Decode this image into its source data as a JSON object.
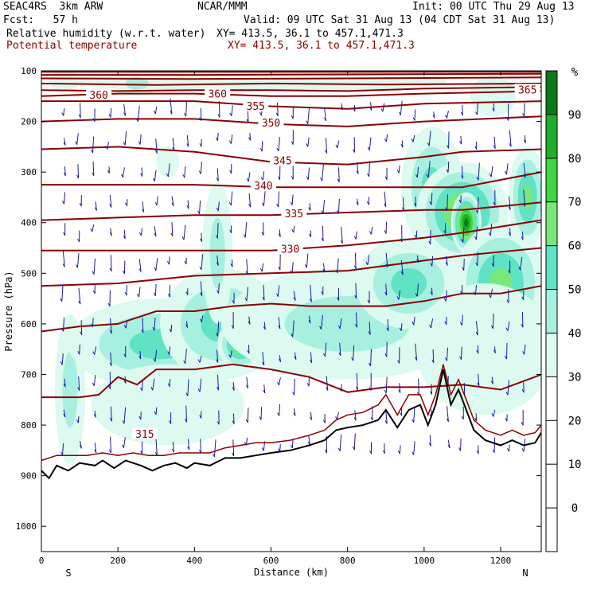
{
  "header": {
    "run": "SEAC4RS  3km ARW",
    "org": "NCAR/MMM",
    "init": "Init: 00 UTC Thu 29 Aug 13",
    "fcst": "Fcst:   57 h",
    "valid": "Valid: 09 UTC Sat 31 Aug 13 (04 CDT Sat 31 Aug 13)",
    "field1": "Relative humidity (w.r.t. water)",
    "field1_xy": "XY= 413.5, 36.1 to 457.1,471.3",
    "field2": "Potential temperature",
    "field2_xy": "XY= 413.5, 36.1 to 457.1,471.3",
    "theta_color": "#8b0000"
  },
  "chart_data": {
    "type": "heatmap",
    "xlabel": "Distance (km)",
    "ylabel": "Pressure (hPa)",
    "xlim": [
      0,
      1306
    ],
    "ylim": [
      1050,
      100
    ],
    "x_ticks": [
      0,
      200,
      400,
      600,
      800,
      1000,
      1200
    ],
    "y_ticks": [
      100,
      200,
      300,
      400,
      500,
      600,
      700,
      800,
      900,
      1000
    ],
    "end_labels": {
      "left": "S",
      "right": "N"
    },
    "colorbar": {
      "unit": "%",
      "ticks": [
        0,
        10,
        20,
        30,
        40,
        50,
        60,
        70,
        80,
        90
      ],
      "levels": [
        {
          "min": 30,
          "max": 40,
          "color": "#dcfaef"
        },
        {
          "min": 40,
          "max": 50,
          "color": "#a7f0e0"
        },
        {
          "min": 50,
          "max": 60,
          "color": "#5fe3c4"
        },
        {
          "min": 60,
          "max": 70,
          "color": "#78e87a"
        },
        {
          "min": 70,
          "max": 80,
          "color": "#3fd641"
        },
        {
          "min": 80,
          "max": 90,
          "color": "#20ad2b"
        },
        {
          "min": 90,
          "max": 100,
          "color": "#0c7a19"
        }
      ]
    },
    "humidity_blobs": [
      {
        "x": 75,
        "p": 730,
        "rx": 40,
        "rp": 150,
        "rh": 50
      },
      {
        "x": 150,
        "p": 640,
        "rx": 70,
        "rp": 60,
        "rh": 48
      },
      {
        "x": 310,
        "p": 640,
        "rx": 240,
        "rp": 90,
        "rh": 56
      },
      {
        "x": 470,
        "p": 600,
        "rx": 160,
        "rp": 110,
        "rh": 58
      },
      {
        "x": 520,
        "p": 640,
        "rx": 60,
        "rp": 50,
        "rh": 72
      },
      {
        "x": 460,
        "p": 460,
        "rx": 40,
        "rp": 140,
        "rh": 45
      },
      {
        "x": 330,
        "p": 760,
        "rx": 200,
        "rp": 80,
        "rh": 38
      },
      {
        "x": 800,
        "p": 600,
        "rx": 330,
        "rp": 110,
        "rh": 42
      },
      {
        "x": 960,
        "p": 520,
        "rx": 140,
        "rp": 90,
        "rh": 55
      },
      {
        "x": 1020,
        "p": 330,
        "rx": 80,
        "rp": 120,
        "rh": 58
      },
      {
        "x": 1100,
        "p": 380,
        "rx": 120,
        "rp": 100,
        "rh": 78
      },
      {
        "x": 1110,
        "p": 400,
        "rx": 40,
        "rp": 60,
        "rh": 92
      },
      {
        "x": 1200,
        "p": 520,
        "rx": 120,
        "rp": 120,
        "rh": 68
      },
      {
        "x": 1270,
        "p": 350,
        "rx": 50,
        "rp": 100,
        "rh": 62
      },
      {
        "x": 1160,
        "p": 650,
        "rx": 180,
        "rp": 130,
        "rh": 40
      },
      {
        "x": 560,
        "p": 120,
        "rx": 500,
        "rp": 22,
        "rh": 36
      },
      {
        "x": 250,
        "p": 125,
        "rx": 60,
        "rp": 25,
        "rh": 42
      },
      {
        "x": 60,
        "p": 120,
        "rx": 40,
        "rp": 20,
        "rh": 38
      },
      {
        "x": 330,
        "p": 280,
        "rx": 30,
        "rp": 30,
        "rh": 34
      },
      {
        "x": 1180,
        "p": 150,
        "rx": 60,
        "rp": 40,
        "rh": 34
      }
    ],
    "theta_isentropes": [
      {
        "label": "315",
        "label_x": 270,
        "label_p": 820,
        "points": [
          [
            0,
            745
          ],
          [
            100,
            745
          ],
          [
            150,
            740
          ],
          [
            200,
            705
          ],
          [
            250,
            720
          ],
          [
            300,
            690
          ],
          [
            400,
            690
          ],
          [
            500,
            680
          ],
          [
            600,
            690
          ],
          [
            700,
            705
          ],
          [
            800,
            735
          ],
          [
            900,
            725
          ],
          [
            1000,
            725
          ],
          [
            1100,
            720
          ],
          [
            1200,
            730
          ],
          [
            1306,
            700
          ]
        ]
      },
      {
        "label": "",
        "points": [
          [
            0,
            615
          ],
          [
            100,
            605
          ],
          [
            200,
            600
          ],
          [
            300,
            575
          ],
          [
            400,
            575
          ],
          [
            500,
            565
          ],
          [
            600,
            560
          ],
          [
            700,
            565
          ],
          [
            800,
            565
          ],
          [
            900,
            565
          ],
          [
            1000,
            555
          ],
          [
            1100,
            540
          ],
          [
            1200,
            540
          ],
          [
            1306,
            525
          ]
        ]
      },
      {
        "label": "",
        "points": [
          [
            0,
            525
          ],
          [
            200,
            520
          ],
          [
            400,
            505
          ],
          [
            600,
            500
          ],
          [
            800,
            495
          ],
          [
            1000,
            475
          ],
          [
            1100,
            465
          ],
          [
            1306,
            450
          ]
        ]
      },
      {
        "label": "330",
        "label_x": 650,
        "label_p": 455,
        "points": [
          [
            0,
            455
          ],
          [
            200,
            455
          ],
          [
            400,
            455
          ],
          [
            600,
            455
          ],
          [
            800,
            445
          ],
          [
            1000,
            430
          ],
          [
            1100,
            420
          ],
          [
            1306,
            395
          ]
        ]
      },
      {
        "label": "335",
        "label_x": 660,
        "label_p": 385,
        "points": [
          [
            0,
            395
          ],
          [
            200,
            390
          ],
          [
            400,
            385
          ],
          [
            600,
            385
          ],
          [
            800,
            380
          ],
          [
            1000,
            375
          ],
          [
            1100,
            375
          ],
          [
            1306,
            360
          ]
        ]
      },
      {
        "label": "340",
        "label_x": 580,
        "label_p": 330,
        "points": [
          [
            0,
            325
          ],
          [
            200,
            325
          ],
          [
            400,
            325
          ],
          [
            600,
            330
          ],
          [
            800,
            330
          ],
          [
            1000,
            330
          ],
          [
            1100,
            330
          ],
          [
            1306,
            300
          ]
        ]
      },
      {
        "label": "345",
        "label_x": 630,
        "label_p": 280,
        "points": [
          [
            0,
            255
          ],
          [
            200,
            250
          ],
          [
            400,
            260
          ],
          [
            600,
            280
          ],
          [
            800,
            285
          ],
          [
            1000,
            270
          ],
          [
            1100,
            260
          ],
          [
            1306,
            255
          ]
        ]
      },
      {
        "label": "350",
        "label_x": 600,
        "label_p": 205,
        "points": [
          [
            0,
            200
          ],
          [
            200,
            195
          ],
          [
            400,
            195
          ],
          [
            600,
            205
          ],
          [
            800,
            210
          ],
          [
            1000,
            200
          ],
          [
            1306,
            190
          ]
        ]
      },
      {
        "label": "355",
        "label_x": 560,
        "label_p": 172,
        "points": [
          [
            0,
            160
          ],
          [
            200,
            160
          ],
          [
            400,
            160
          ],
          [
            600,
            170
          ],
          [
            800,
            175
          ],
          [
            1000,
            165
          ],
          [
            1306,
            160
          ]
        ]
      },
      {
        "label": "360",
        "label_x": 460,
        "label_p": 148,
        "points": [
          [
            0,
            150
          ],
          [
            200,
            145
          ],
          [
            400,
            145
          ],
          [
            600,
            150
          ],
          [
            800,
            150
          ],
          [
            1000,
            145
          ],
          [
            1306,
            140
          ]
        ]
      },
      {
        "label": "360",
        "label_x": 150,
        "label_p": 150,
        "points": [
          [
            0,
            138
          ],
          [
            200,
            140
          ],
          [
            400,
            138
          ],
          [
            600,
            138
          ],
          [
            800,
            140
          ],
          [
            1000,
            135
          ],
          [
            1306,
            132
          ]
        ]
      },
      {
        "label": "365",
        "label_x": 1270,
        "label_p": 140,
        "points": [
          [
            0,
            125
          ],
          [
            300,
            128
          ],
          [
            600,
            125
          ],
          [
            900,
            127
          ],
          [
            1306,
            125
          ]
        ]
      },
      {
        "label": "",
        "points": [
          [
            0,
            115
          ],
          [
            400,
            116
          ],
          [
            800,
            115
          ],
          [
            1306,
            113
          ]
        ]
      },
      {
        "label": "",
        "points": [
          [
            0,
            108
          ],
          [
            400,
            108
          ],
          [
            800,
            107
          ],
          [
            1306,
            106
          ]
        ]
      },
      {
        "label": "",
        "points": [
          [
            0,
            102
          ],
          [
            600,
            102
          ],
          [
            1306,
            102
          ]
        ]
      }
    ],
    "terrain_surface": [
      [
        0,
        890
      ],
      [
        20,
        905
      ],
      [
        40,
        880
      ],
      [
        70,
        890
      ],
      [
        100,
        875
      ],
      [
        140,
        880
      ],
      [
        160,
        870
      ],
      [
        190,
        885
      ],
      [
        220,
        870
      ],
      [
        260,
        880
      ],
      [
        290,
        890
      ],
      [
        320,
        880
      ],
      [
        350,
        875
      ],
      [
        380,
        885
      ],
      [
        400,
        875
      ],
      [
        440,
        880
      ],
      [
        480,
        865
      ],
      [
        520,
        865
      ],
      [
        560,
        860
      ],
      [
        600,
        855
      ],
      [
        650,
        850
      ],
      [
        700,
        840
      ],
      [
        740,
        830
      ],
      [
        770,
        810
      ],
      [
        800,
        805
      ],
      [
        840,
        800
      ],
      [
        880,
        790
      ],
      [
        900,
        770
      ],
      [
        930,
        805
      ],
      [
        960,
        770
      ],
      [
        990,
        760
      ],
      [
        1010,
        800
      ],
      [
        1030,
        760
      ],
      [
        1050,
        690
      ],
      [
        1070,
        760
      ],
      [
        1090,
        730
      ],
      [
        1110,
        770
      ],
      [
        1130,
        810
      ],
      [
        1160,
        830
      ],
      [
        1200,
        840
      ],
      [
        1230,
        830
      ],
      [
        1260,
        840
      ],
      [
        1290,
        835
      ],
      [
        1306,
        815
      ]
    ],
    "terrain_inner": [
      [
        0,
        870
      ],
      [
        40,
        860
      ],
      [
        80,
        860
      ],
      [
        120,
        860
      ],
      [
        160,
        855
      ],
      [
        200,
        860
      ],
      [
        240,
        855
      ],
      [
        280,
        860
      ],
      [
        320,
        860
      ],
      [
        360,
        855
      ],
      [
        400,
        855
      ],
      [
        440,
        855
      ],
      [
        480,
        845
      ],
      [
        520,
        840
      ],
      [
        560,
        835
      ],
      [
        600,
        835
      ],
      [
        650,
        830
      ],
      [
        700,
        820
      ],
      [
        740,
        810
      ],
      [
        770,
        790
      ],
      [
        800,
        780
      ],
      [
        840,
        775
      ],
      [
        880,
        760
      ],
      [
        900,
        740
      ],
      [
        930,
        780
      ],
      [
        960,
        740
      ],
      [
        990,
        740
      ],
      [
        1010,
        780
      ],
      [
        1030,
        740
      ],
      [
        1050,
        680
      ],
      [
        1070,
        740
      ],
      [
        1090,
        710
      ],
      [
        1110,
        750
      ],
      [
        1130,
        790
      ],
      [
        1160,
        810
      ],
      [
        1200,
        820
      ],
      [
        1230,
        810
      ],
      [
        1260,
        820
      ],
      [
        1290,
        815
      ],
      [
        1306,
        800
      ]
    ]
  }
}
